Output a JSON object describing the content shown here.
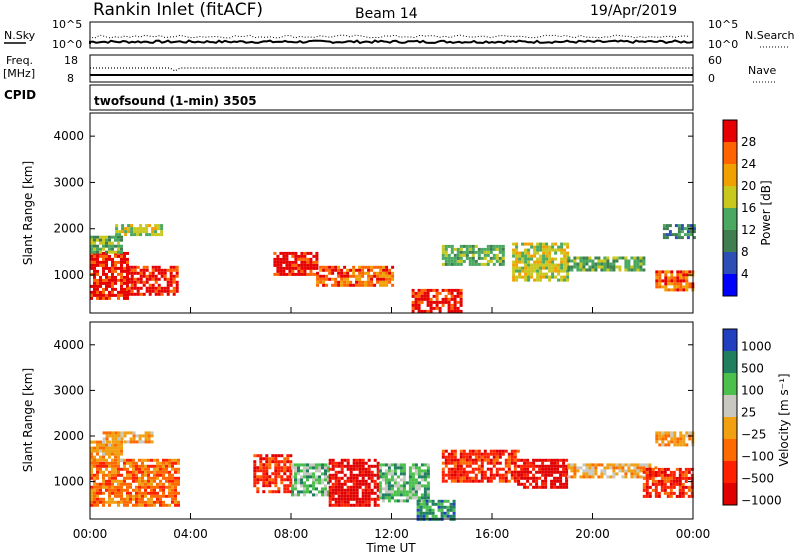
{
  "header": {
    "station": "Rankin Inlet (fitACF)",
    "beam": "Beam 14",
    "date": "19/Apr/2019"
  },
  "noise_panel": {
    "left_label": "N.Sky",
    "right_label": "N.Search",
    "left_ticks": [
      "10^5",
      "10^0"
    ],
    "right_ticks": [
      "10^5",
      "10^0"
    ]
  },
  "freq_panel": {
    "left_label_1": "Freq.",
    "left_label_2": "[MHz]",
    "right_label": "Nave",
    "left_ticks": [
      "18",
      "8"
    ],
    "right_ticks": [
      "60",
      "0"
    ]
  },
  "cpid_panel": {
    "label": "CPID",
    "text": "twofsound (1-min) 3505"
  },
  "colors": {
    "power_scale": [
      "#0000ff",
      "#2d4fb5",
      "#3f7f4f",
      "#4aa860",
      "#c8c81e",
      "#f0a000",
      "#ff6400",
      "#e60000"
    ],
    "velocity_scale": [
      "#2040c0",
      "#1f7f5f",
      "#4cc04c",
      "#c8c8c0",
      "#f0a010",
      "#ff6a00",
      "#ff2000",
      "#e00000"
    ],
    "grid": "#000000"
  },
  "chart_data": [
    {
      "type": "heatmap",
      "name": "power",
      "ylabel": "Slant Range [km]",
      "yticks": [
        "1000",
        "2000",
        "3000",
        "4000"
      ],
      "ylim": [
        180,
        4500
      ],
      "xlim_hours": [
        0,
        24
      ],
      "colorbar_label": "Power [dB]",
      "colorbar_ticks": [
        "4",
        "8",
        "12",
        "16",
        "20",
        "24",
        "28"
      ],
      "bands": [
        {
          "t0": 0.0,
          "t1": 1.5,
          "r0": 500,
          "r1": 1500,
          "level": 7
        },
        {
          "t0": 1.5,
          "t1": 3.5,
          "r0": 600,
          "r1": 1200,
          "level": 7
        },
        {
          "t0": 0.0,
          "t1": 1.2,
          "r0": 1500,
          "r1": 1850,
          "level": 3
        },
        {
          "t0": 1.0,
          "t1": 2.8,
          "r0": 1900,
          "r1": 2100,
          "level": 4
        },
        {
          "t0": 7.3,
          "t1": 9.0,
          "r0": 1000,
          "r1": 1500,
          "level": 7
        },
        {
          "t0": 9.0,
          "t1": 12.0,
          "r0": 800,
          "r1": 1200,
          "level": 6
        },
        {
          "t0": 12.8,
          "t1": 14.8,
          "r0": 200,
          "r1": 700,
          "level": 7
        },
        {
          "t0": 14.0,
          "t1": 16.5,
          "r0": 1200,
          "r1": 1650,
          "level": 3
        },
        {
          "t0": 16.8,
          "t1": 19.0,
          "r0": 900,
          "r1": 1700,
          "level": 4
        },
        {
          "t0": 19.0,
          "t1": 22.0,
          "r0": 1100,
          "r1": 1400,
          "level": 3
        },
        {
          "t0": 22.5,
          "t1": 24.0,
          "r0": 700,
          "r1": 1100,
          "level": 6
        },
        {
          "t0": 22.8,
          "t1": 24.0,
          "r0": 1800,
          "r1": 2100,
          "level": 2
        }
      ]
    },
    {
      "type": "heatmap",
      "name": "velocity",
      "ylabel": "Slant Range [km]",
      "yticks": [
        "1000",
        "2000",
        "3000",
        "4000"
      ],
      "ylim": [
        180,
        4500
      ],
      "xlim_hours": [
        0,
        24
      ],
      "colorbar_label": "Velocity [m s⁻¹]",
      "colorbar_ticks": [
        "1000",
        "500",
        "100",
        "25",
        "−25",
        "−100",
        "−500",
        "−1000"
      ],
      "bands": [
        {
          "t0": 0.0,
          "t1": 3.5,
          "r0": 500,
          "r1": 1500,
          "level": 2
        },
        {
          "t0": 0.0,
          "t1": 1.2,
          "r0": 1500,
          "r1": 1900,
          "level": 3
        },
        {
          "t0": 0.5,
          "t1": 2.5,
          "r0": 1900,
          "r1": 2100,
          "level": 3
        },
        {
          "t0": 6.5,
          "t1": 8.0,
          "r0": 800,
          "r1": 1600,
          "level": 1
        },
        {
          "t0": 8.0,
          "t1": 9.5,
          "r0": 700,
          "r1": 1400,
          "level": 5
        },
        {
          "t0": 9.5,
          "t1": 11.5,
          "r0": 500,
          "r1": 1500,
          "level": 0
        },
        {
          "t0": 11.5,
          "t1": 13.5,
          "r0": 600,
          "r1": 1400,
          "level": 5
        },
        {
          "t0": 13.0,
          "t1": 14.5,
          "r0": 200,
          "r1": 600,
          "level": 6
        },
        {
          "t0": 14.0,
          "t1": 17.0,
          "r0": 1000,
          "r1": 1700,
          "level": 1
        },
        {
          "t0": 17.0,
          "t1": 19.0,
          "r0": 900,
          "r1": 1500,
          "level": 0
        },
        {
          "t0": 19.0,
          "t1": 22.5,
          "r0": 1100,
          "r1": 1400,
          "level": 3
        },
        {
          "t0": 22.0,
          "t1": 24.0,
          "r0": 700,
          "r1": 1300,
          "level": 1
        },
        {
          "t0": 22.5,
          "t1": 24.0,
          "r0": 1800,
          "r1": 2100,
          "level": 3
        }
      ]
    }
  ],
  "time_axis": {
    "ticks": [
      "00:00",
      "04:00",
      "08:00",
      "12:00",
      "16:00",
      "20:00",
      "00:00"
    ],
    "label": "Time UT"
  }
}
